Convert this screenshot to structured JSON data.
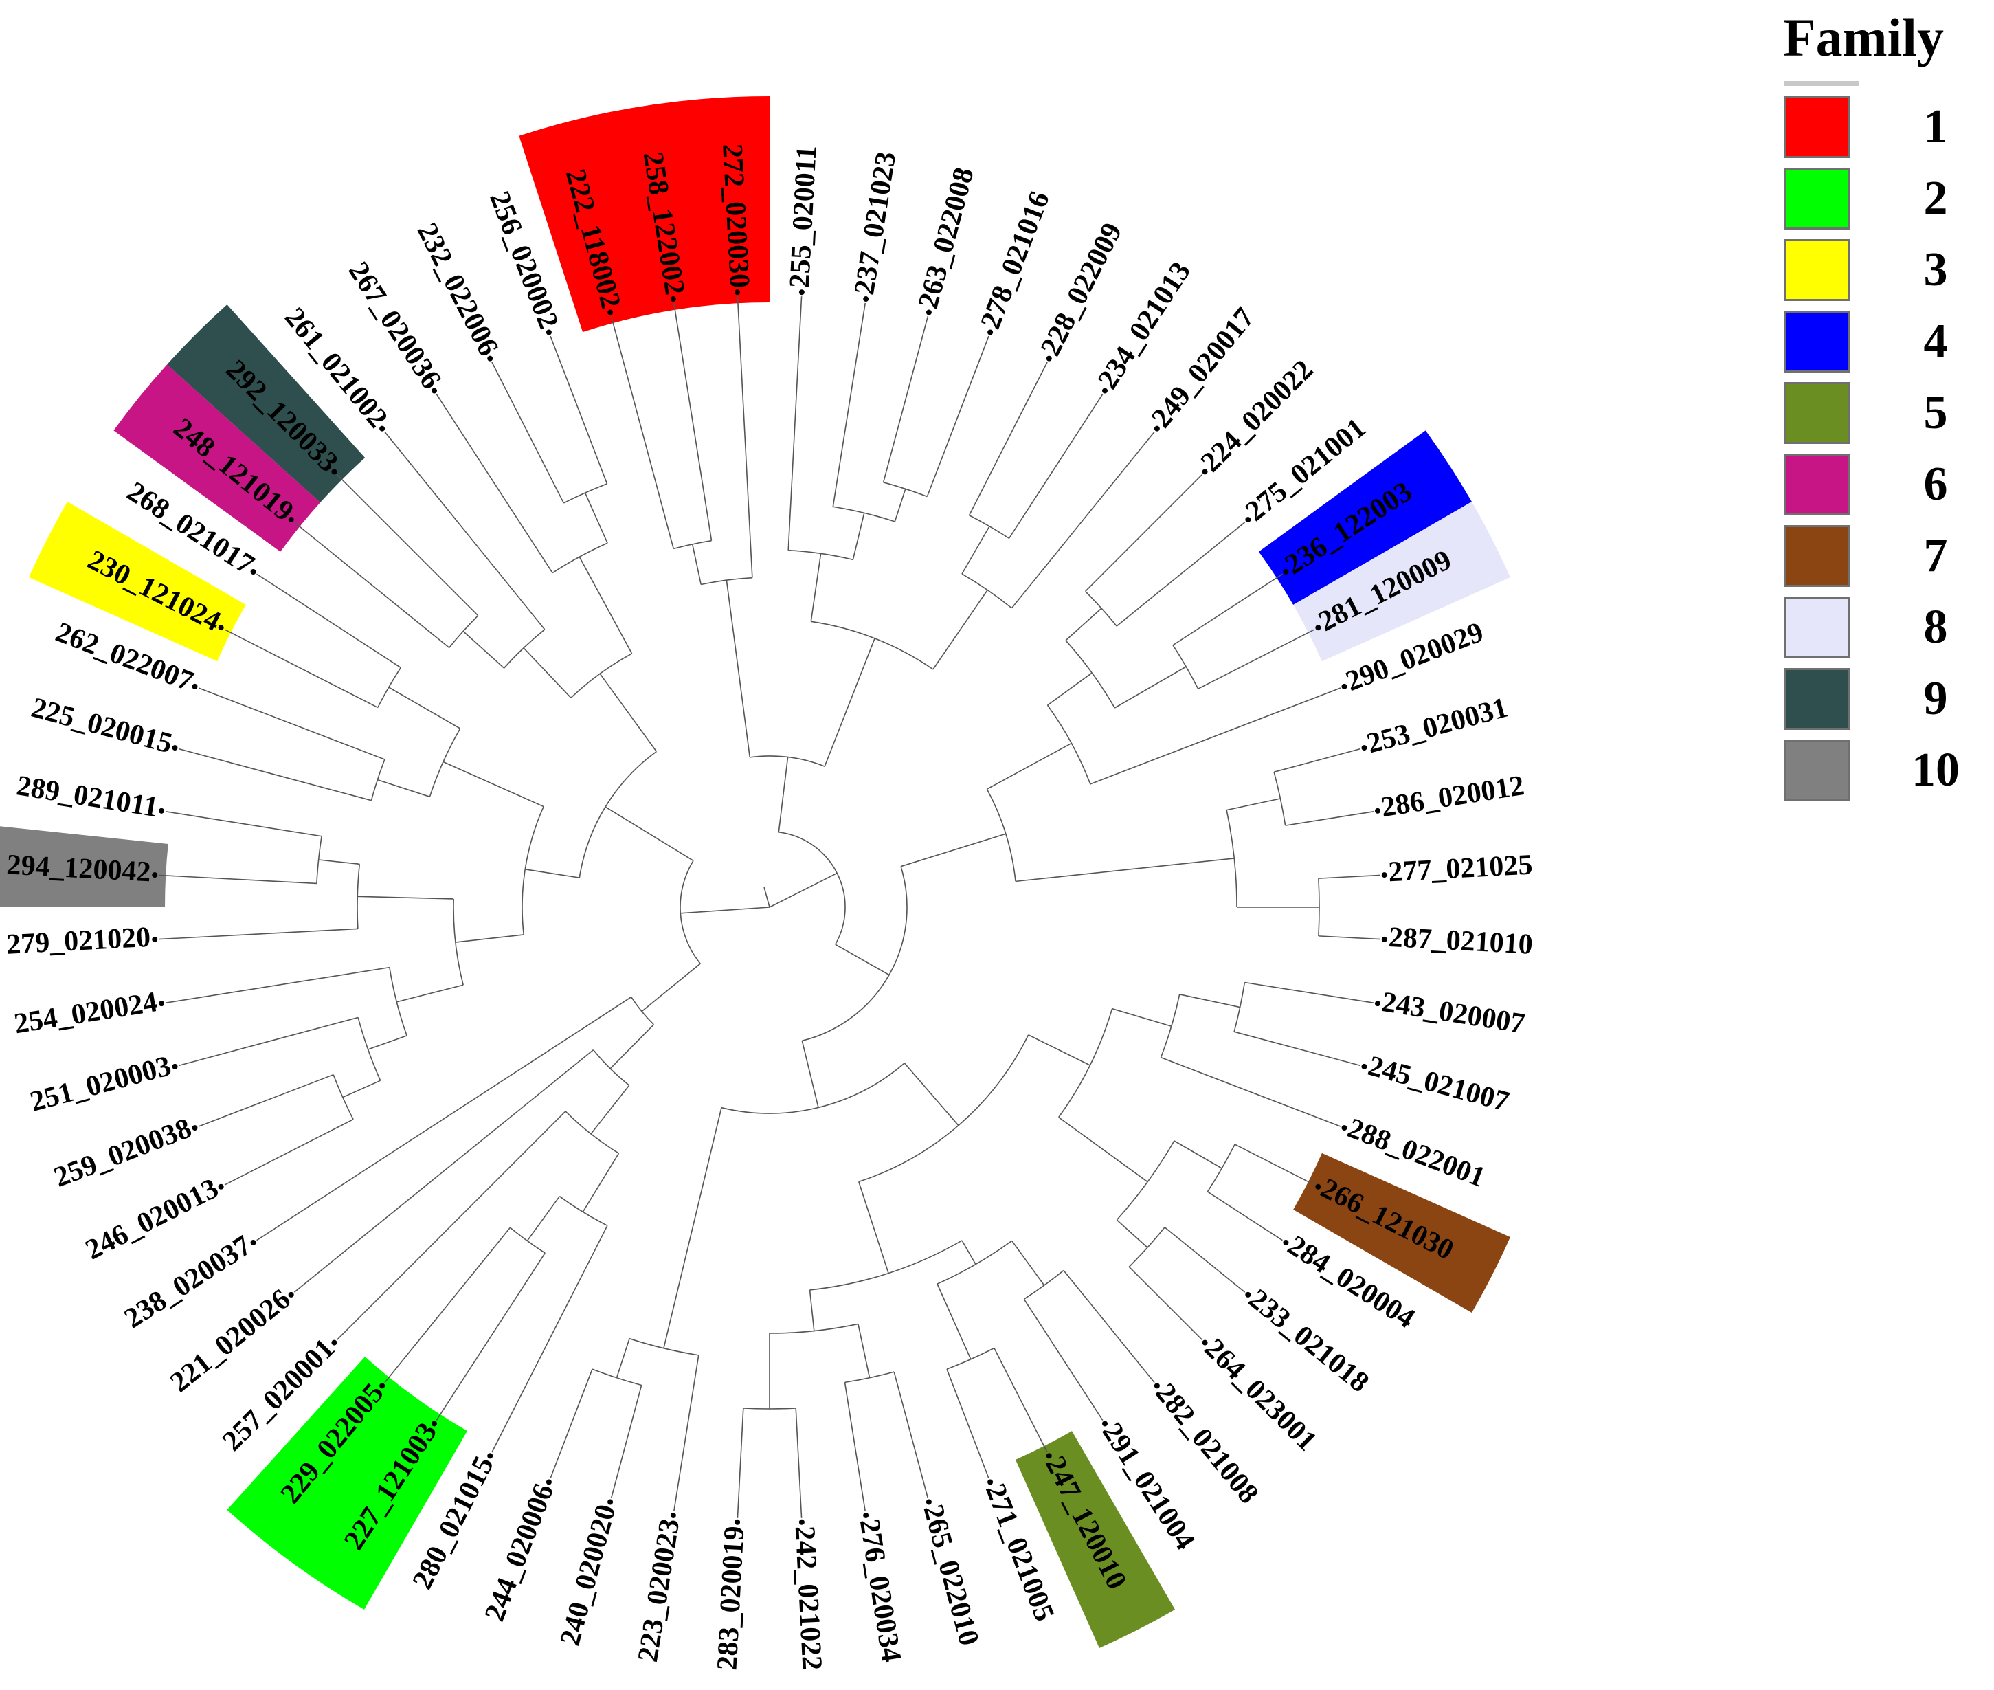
{
  "legend": {
    "title": "Family",
    "families": [
      {
        "label": "1",
        "color": "#ff0000"
      },
      {
        "label": "2",
        "color": "#00ff00"
      },
      {
        "label": "3",
        "color": "#ffff00"
      },
      {
        "label": "4",
        "color": "#0000ff"
      },
      {
        "label": "5",
        "color": "#6b8e23"
      },
      {
        "label": "6",
        "color": "#c71585"
      },
      {
        "label": "7",
        "color": "#8b4513"
      },
      {
        "label": "8",
        "color": "#e6e6fa"
      },
      {
        "label": "9",
        "color": "#2f4f4f"
      },
      {
        "label": "10",
        "color": "#808080"
      }
    ]
  },
  "tree": {
    "leaves": [
      {
        "name": "222_118002",
        "family": "1"
      },
      {
        "name": "258_122002",
        "family": "1"
      },
      {
        "name": "272_020030",
        "family": "1"
      },
      {
        "name": "255_020011",
        "family": ""
      },
      {
        "name": "237_021023",
        "family": ""
      },
      {
        "name": "263_022008",
        "family": ""
      },
      {
        "name": "278_021016",
        "family": ""
      },
      {
        "name": "228_022009",
        "family": ""
      },
      {
        "name": "234_021013",
        "family": ""
      },
      {
        "name": "249_020017",
        "family": ""
      },
      {
        "name": "224_020022",
        "family": ""
      },
      {
        "name": "275_021001",
        "family": ""
      },
      {
        "name": "236_122003",
        "family": "4"
      },
      {
        "name": "281_120009",
        "family": "8"
      },
      {
        "name": "290_020029",
        "family": ""
      },
      {
        "name": "253_020031",
        "family": ""
      },
      {
        "name": "286_020012",
        "family": ""
      },
      {
        "name": "277_021025",
        "family": ""
      },
      {
        "name": "287_021010",
        "family": ""
      },
      {
        "name": "243_020007",
        "family": ""
      },
      {
        "name": "245_021007",
        "family": ""
      },
      {
        "name": "288_022001",
        "family": ""
      },
      {
        "name": "266_121030",
        "family": "7"
      },
      {
        "name": "284_020004",
        "family": ""
      },
      {
        "name": "233_021018",
        "family": ""
      },
      {
        "name": "264_023001",
        "family": ""
      },
      {
        "name": "282_021008",
        "family": ""
      },
      {
        "name": "291_021004",
        "family": ""
      },
      {
        "name": "247_120010",
        "family": "5"
      },
      {
        "name": "271_021005",
        "family": ""
      },
      {
        "name": "265_022010",
        "family": ""
      },
      {
        "name": "276_020034",
        "family": ""
      },
      {
        "name": "242_021022",
        "family": ""
      },
      {
        "name": "283_020019",
        "family": ""
      },
      {
        "name": "223_020023",
        "family": ""
      },
      {
        "name": "240_020020",
        "family": ""
      },
      {
        "name": "244_020006",
        "family": ""
      },
      {
        "name": "280_021015",
        "family": ""
      },
      {
        "name": "227_121003",
        "family": "2"
      },
      {
        "name": "229_022005",
        "family": "2"
      },
      {
        "name": "257_020001",
        "family": ""
      },
      {
        "name": "221_020026",
        "family": ""
      },
      {
        "name": "238_020037",
        "family": ""
      },
      {
        "name": "246_020013",
        "family": ""
      },
      {
        "name": "259_020038",
        "family": ""
      },
      {
        "name": "251_020003",
        "family": ""
      },
      {
        "name": "254_020024",
        "family": ""
      },
      {
        "name": "279_021020",
        "family": ""
      },
      {
        "name": "294_120042",
        "family": "10"
      },
      {
        "name": "289_021011",
        "family": ""
      },
      {
        "name": "225_020015",
        "family": ""
      },
      {
        "name": "262_022007",
        "family": ""
      },
      {
        "name": "230_121024",
        "family": "3"
      },
      {
        "name": "268_021017",
        "family": ""
      },
      {
        "name": "248_121019",
        "family": "6"
      },
      {
        "name": "292_120033",
        "family": "9"
      },
      {
        "name": "261_021002",
        "family": ""
      },
      {
        "name": "267_020036",
        "family": ""
      },
      {
        "name": "232_022006",
        "family": ""
      },
      {
        "name": "256_020002",
        "family": ""
      }
    ]
  }
}
